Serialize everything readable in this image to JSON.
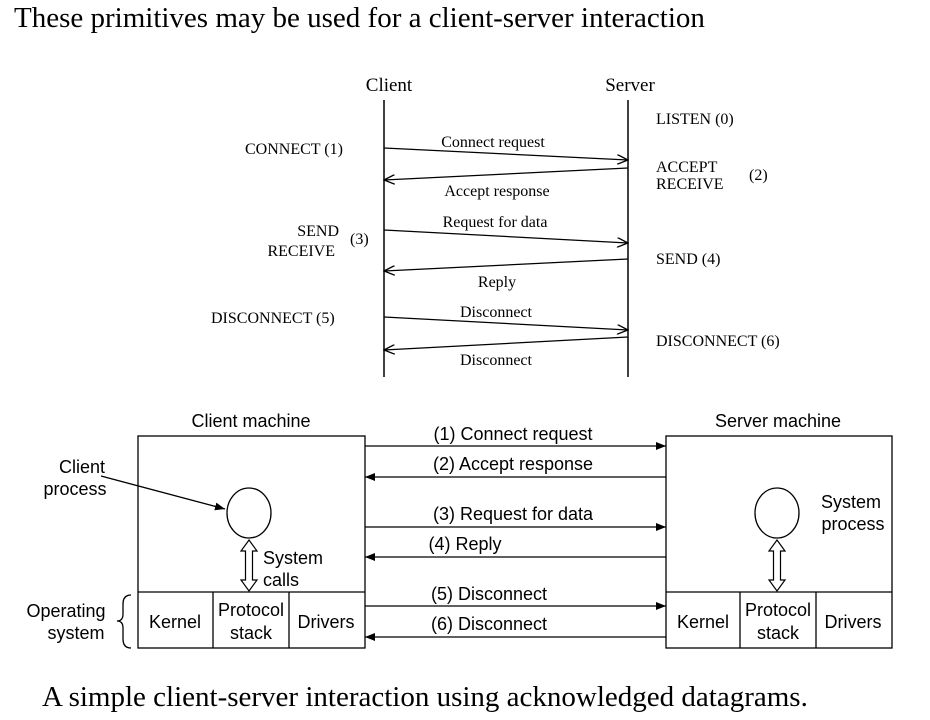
{
  "title": "These primitives may be used for a client-server interaction",
  "caption": "A simple client-server interaction using acknowledged datagrams.",
  "sequence": {
    "client_label": "Client",
    "server_label": "Server",
    "client_primitives": {
      "connect": "CONNECT (1)",
      "send": "SEND",
      "receive": "RECEIVE",
      "send_receive_num": "(3)",
      "disconnect": "DISCONNECT (5)"
    },
    "server_primitives": {
      "listen": "LISTEN (0)",
      "accept": "ACCEPT",
      "receive": "RECEIVE",
      "accept_receive_num": "(2)",
      "send": "SEND (4)",
      "disconnect": "DISCONNECT (6)"
    },
    "messages": [
      "Connect request",
      "Accept response",
      "Request for data",
      "Reply",
      "Disconnect",
      "Disconnect"
    ]
  },
  "architecture": {
    "client_machine": "Client machine",
    "server_machine": "Server machine",
    "client_process_line1": "Client",
    "client_process_line2": "process",
    "system_calls_line1": "System",
    "system_calls_line2": "calls",
    "system_process_line1": "System",
    "system_process_line2": "process",
    "os_line1": "Operating",
    "os_line2": "system",
    "kernel": "Kernel",
    "protocol_line1": "Protocol",
    "protocol_line2": "stack",
    "drivers": "Drivers",
    "messages": [
      "(1) Connect request",
      "(2) Accept response",
      "(3) Request for data",
      "(4) Reply",
      "(5) Disconnect",
      "(6) Disconnect"
    ]
  }
}
